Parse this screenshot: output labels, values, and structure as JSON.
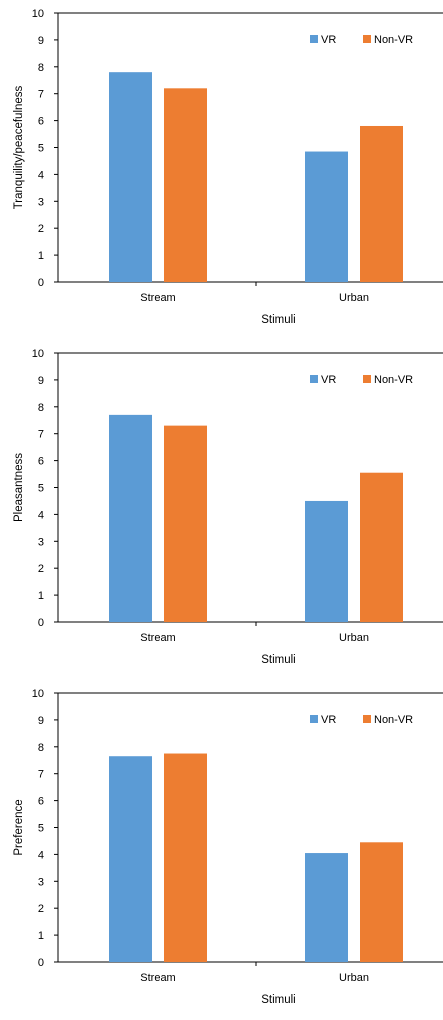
{
  "chart_data": [
    {
      "type": "bar",
      "categories": [
        "Stream",
        "Urban"
      ],
      "series": [
        {
          "name": "VR",
          "values": [
            7.8,
            4.85
          ]
        },
        {
          "name": "Non-VR",
          "values": [
            7.2,
            5.8
          ]
        }
      ],
      "xlabel": "Stimuli",
      "ylabel": "Tranquility/peacefulness",
      "ylim": [
        0,
        10
      ],
      "yticks": [
        "0",
        "1",
        "2",
        "3",
        "4",
        "5",
        "6",
        "7",
        "8",
        "9",
        "10"
      ],
      "legend": "top-right",
      "grid": false,
      "colors": [
        "#5b9bd5",
        "#ed7d31"
      ]
    },
    {
      "type": "bar",
      "categories": [
        "Stream",
        "Urban"
      ],
      "series": [
        {
          "name": "VR",
          "values": [
            7.7,
            4.5
          ]
        },
        {
          "name": "Non-VR",
          "values": [
            7.3,
            5.55
          ]
        }
      ],
      "xlabel": "Stimuli",
      "ylabel": "Pleasantness",
      "ylim": [
        0,
        10
      ],
      "yticks": [
        "0",
        "1",
        "2",
        "3",
        "4",
        "5",
        "6",
        "7",
        "8",
        "9",
        "10"
      ],
      "legend": "top-right",
      "grid": false,
      "colors": [
        "#5b9bd5",
        "#ed7d31"
      ]
    },
    {
      "type": "bar",
      "categories": [
        "Stream",
        "Urban"
      ],
      "series": [
        {
          "name": "VR",
          "values": [
            7.65,
            4.05
          ]
        },
        {
          "name": "Non-VR",
          "values": [
            7.75,
            4.45
          ]
        }
      ],
      "xlabel": "Stimuli",
      "ylabel": "Preference",
      "ylim": [
        0,
        10
      ],
      "yticks": [
        "0",
        "1",
        "2",
        "3",
        "4",
        "5",
        "6",
        "7",
        "8",
        "9",
        "10"
      ],
      "legend": "top-right",
      "grid": false,
      "colors": [
        "#5b9bd5",
        "#ed7d31"
      ]
    }
  ]
}
